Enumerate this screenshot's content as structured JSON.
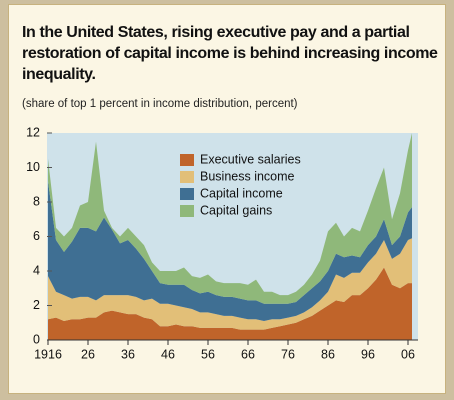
{
  "chart_data": {
    "type": "stacked_area",
    "title": "In the United States, rising executive pay and a partial restoration of capital income is behind increasing income inequality.",
    "subtitle": "(share of top 1 percent in income distribution, percent)",
    "x": [
      1916,
      1918,
      1920,
      1922,
      1924,
      1926,
      1928,
      1930,
      1932,
      1934,
      1936,
      1938,
      1940,
      1942,
      1944,
      1946,
      1948,
      1950,
      1952,
      1954,
      1956,
      1958,
      1960,
      1962,
      1964,
      1966,
      1968,
      1970,
      1972,
      1974,
      1976,
      1978,
      1980,
      1982,
      1984,
      1986,
      1988,
      1990,
      1992,
      1994,
      1996,
      1998,
      2000,
      2002,
      2004,
      2006,
      2007
    ],
    "series": [
      {
        "name": "Executive salaries",
        "color": "#c0642a",
        "values": [
          1.2,
          1.3,
          1.1,
          1.2,
          1.2,
          1.3,
          1.3,
          1.6,
          1.7,
          1.6,
          1.5,
          1.5,
          1.3,
          1.2,
          0.8,
          0.8,
          0.9,
          0.8,
          0.8,
          0.7,
          0.7,
          0.7,
          0.7,
          0.7,
          0.6,
          0.6,
          0.6,
          0.6,
          0.7,
          0.8,
          0.9,
          1.0,
          1.2,
          1.4,
          1.7,
          2.0,
          2.3,
          2.2,
          2.6,
          2.6,
          3.0,
          3.5,
          4.2,
          3.2,
          3.0,
          3.3,
          3.3
        ]
      },
      {
        "name": "Business income",
        "color": "#e2bf78",
        "values": [
          2.5,
          1.5,
          1.5,
          1.2,
          1.3,
          1.2,
          1.0,
          1.0,
          0.9,
          1.0,
          1.1,
          1.0,
          1.0,
          1.2,
          1.3,
          1.3,
          1.1,
          1.1,
          1.0,
          0.9,
          0.9,
          0.8,
          0.7,
          0.7,
          0.7,
          0.6,
          0.6,
          0.5,
          0.5,
          0.4,
          0.4,
          0.4,
          0.4,
          0.5,
          0.6,
          0.8,
          1.5,
          1.4,
          1.3,
          1.3,
          1.5,
          1.5,
          1.6,
          1.5,
          2.0,
          2.5,
          2.6
        ]
      },
      {
        "name": "Capital income",
        "color": "#3f6f93",
        "values": [
          5.5,
          3.0,
          2.5,
          3.3,
          4.0,
          4.0,
          4.0,
          4.5,
          3.8,
          3.0,
          3.2,
          2.8,
          2.4,
          1.6,
          1.2,
          1.1,
          1.2,
          1.3,
          1.1,
          1.1,
          1.2,
          1.1,
          1.1,
          1.1,
          1.1,
          1.1,
          1.1,
          1.0,
          0.9,
          0.9,
          0.8,
          0.8,
          1.0,
          1.1,
          1.1,
          1.2,
          1.2,
          1.2,
          1.0,
          0.9,
          1.0,
          1.0,
          1.2,
          0.8,
          1.0,
          1.6,
          1.8
        ]
      },
      {
        "name": "Capital gains",
        "color": "#8fb87a",
        "values": [
          1.3,
          0.7,
          0.9,
          0.8,
          1.3,
          1.5,
          5.2,
          0.4,
          0.1,
          0.4,
          0.7,
          0.7,
          0.8,
          0.5,
          0.7,
          0.8,
          0.8,
          1.0,
          0.8,
          0.9,
          1.0,
          0.8,
          0.8,
          0.8,
          0.9,
          0.9,
          1.2,
          0.7,
          0.7,
          0.5,
          0.5,
          0.6,
          0.6,
          0.8,
          1.2,
          2.3,
          1.8,
          1.2,
          1.6,
          1.5,
          2.0,
          2.8,
          3.0,
          1.5,
          2.5,
          3.6,
          4.3
        ]
      }
    ],
    "xlim": [
      1916,
      2008
    ],
    "xticks": [
      1916,
      {
        "value": 1926,
        "label": "26"
      },
      {
        "value": 1936,
        "label": "36"
      },
      {
        "value": 1946,
        "label": "46"
      },
      {
        "value": 1956,
        "label": "56"
      },
      {
        "value": 1966,
        "label": "66"
      },
      {
        "value": 1976,
        "label": "76"
      },
      {
        "value": 1986,
        "label": "86"
      },
      {
        "value": 1996,
        "label": "96"
      },
      {
        "value": 2006,
        "label": "06"
      }
    ],
    "ylim": [
      0,
      12
    ],
    "yticks": [
      0,
      2,
      4,
      6,
      8,
      10,
      12
    ],
    "plot_background": "#cfe2ea"
  }
}
